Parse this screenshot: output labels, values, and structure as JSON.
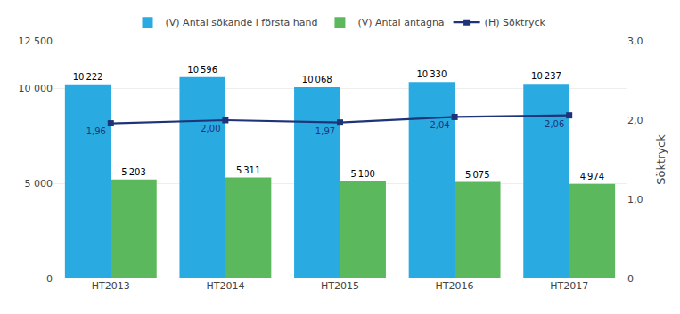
{
  "chart_data": {
    "type": "bar",
    "categories": [
      "HT2013",
      "HT2014",
      "HT2015",
      "HT2016",
      "HT2017"
    ],
    "series": [
      {
        "name": "(V) Antal sökande i första hand",
        "type": "bar",
        "color": "#29abe2",
        "values": [
          10222,
          10596,
          10068,
          10330,
          10237
        ],
        "value_labels": [
          "10 222",
          "10 596",
          "10 068",
          "10 330",
          "10 237"
        ]
      },
      {
        "name": "(V) Antal antagna",
        "type": "bar",
        "color": "#5cb85c",
        "values": [
          5203,
          5311,
          5100,
          5075,
          4974
        ],
        "value_labels": [
          "5 203",
          "5 311",
          "5 100",
          "5 075",
          "4 974"
        ]
      },
      {
        "name": "(H) Söktryck",
        "type": "line",
        "axis": "y2",
        "color": "#1f3478",
        "marker": "square",
        "values": [
          1.96,
          2.0,
          1.97,
          2.04,
          2.06
        ],
        "value_labels": [
          "1,96",
          "2,00",
          "1,97",
          "2,04",
          "2,06"
        ]
      }
    ],
    "ylim": [
      0,
      12500
    ],
    "yticks": [
      0,
      {
        "value": 5000,
        "label": "5 000"
      },
      {
        "value": 10000,
        "label": "10 000"
      },
      {
        "value": 12500,
        "label": "12 500"
      }
    ],
    "y2lim": [
      0,
      3.0
    ],
    "y2ticks": [
      0,
      {
        "value": 1.0,
        "label": "1,0"
      },
      {
        "value": 2.0,
        "label": "2,0"
      },
      {
        "value": 3.0,
        "label": "3,0"
      }
    ],
    "y2label": "Söktryck",
    "grid": true,
    "legend": "top",
    "data_labels": true
  }
}
